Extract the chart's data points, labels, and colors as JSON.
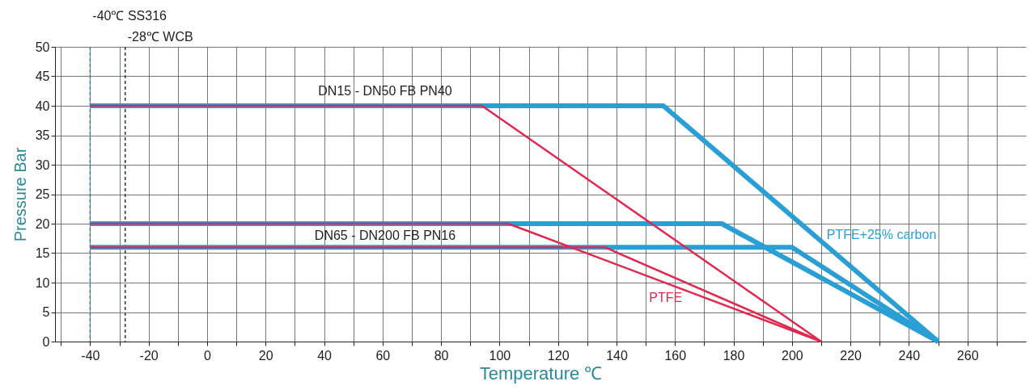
{
  "chart_data": {
    "type": "line",
    "xlabel": "Temperature ℃",
    "ylabel": "Pressure Bar",
    "xlim": [
      -52,
      280
    ],
    "ylim": [
      0,
      50
    ],
    "xticks": [
      {
        "value": -50,
        "label": null
      },
      -40,
      {
        "value": -30,
        "label": null
      },
      -20,
      {
        "value": -10,
        "label": null
      },
      0,
      {
        "value": 10,
        "label": null
      },
      20,
      {
        "value": 30,
        "label": null
      },
      40,
      {
        "value": 50,
        "label": null
      },
      60,
      {
        "value": 70,
        "label": null
      },
      80,
      {
        "value": 90,
        "label": null
      },
      100,
      {
        "value": 110,
        "label": null
      },
      120,
      {
        "value": 130,
        "label": null
      },
      140,
      {
        "value": 150,
        "label": null
      },
      160,
      {
        "value": 170,
        "label": null
      },
      180,
      {
        "value": 190,
        "label": null
      },
      200,
      {
        "value": 210,
        "label": null
      },
      220,
      {
        "value": 230,
        "label": null
      },
      240,
      {
        "value": 250,
        "label": null
      },
      260,
      {
        "value": 270,
        "label": null
      }
    ],
    "yticks": [
      0,
      5,
      10,
      15,
      20,
      25,
      30,
      35,
      40,
      45,
      50
    ],
    "grid": true,
    "marker": "none",
    "line_style": "solid",
    "series": [
      {
        "name": "PTFE+25% carbon",
        "color": "#2a9fd6",
        "x": [
          -40,
          156,
          250
        ],
        "values": [
          40,
          40,
          0
        ]
      },
      {
        "color": "#2a9fd6",
        "x": [
          -40,
          176,
          250
        ],
        "values": [
          20,
          20,
          0
        ]
      },
      {
        "color": "#2a9fd6",
        "x": [
          -40,
          200,
          250
        ],
        "values": [
          16,
          16,
          0
        ]
      },
      {
        "color": "#e0294f",
        "x": [
          -40,
          94,
          210
        ],
        "values": [
          40,
          40,
          0
        ]
      },
      {
        "color": "#e0294f",
        "x": [
          -40,
          103,
          210
        ],
        "values": [
          20,
          20,
          0
        ]
      },
      {
        "name": "PTFE",
        "color": "#e0294f",
        "x": [
          -40,
          136,
          210
        ],
        "values": [
          16,
          16,
          0
        ]
      }
    ],
    "ref_lines": [
      {
        "axis": "x",
        "value": -40,
        "label": "-40℃ SS316",
        "color": "#2e7d8c",
        "line_style": "dashed"
      },
      {
        "axis": "x",
        "value": -28,
        "label": "-28℃ WCB",
        "color": "#1f3a45",
        "line_style": "dashed"
      }
    ],
    "annotations": [
      "DN15 - DN50 FB PN40",
      "DN65 - DN200 FB PN16"
    ]
  }
}
